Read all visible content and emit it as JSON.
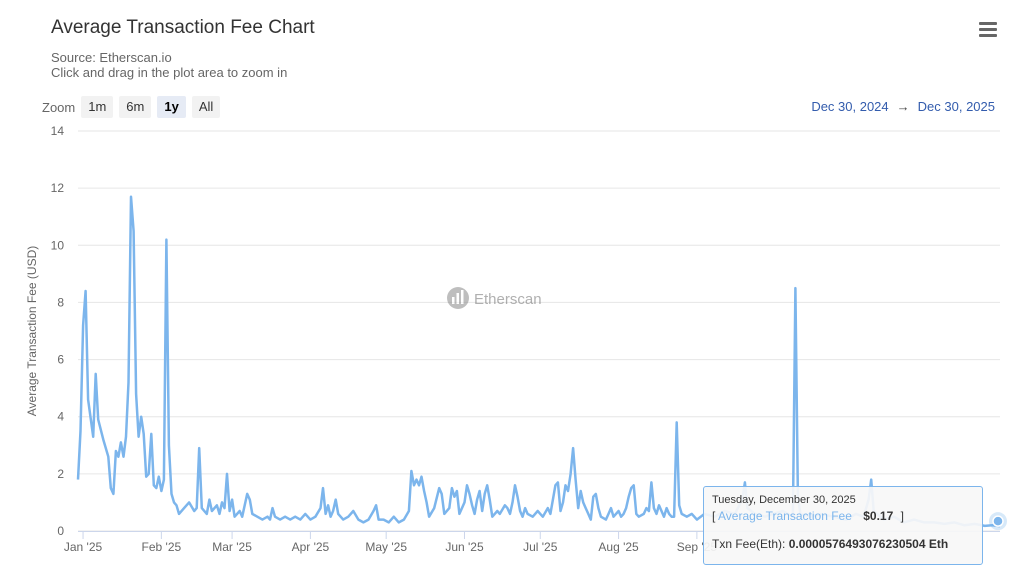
{
  "header": {
    "title": "Average Transaction Fee Chart",
    "source": "Source: Etherscan.io",
    "hint": "Click and drag in the plot area to zoom in"
  },
  "zoom": {
    "label": "Zoom",
    "buttons": [
      "1m",
      "6m",
      "1y",
      "All"
    ],
    "active": "1y"
  },
  "range": {
    "from": "Dec 30, 2024",
    "arrow": "→",
    "to": "Dec 30, 2025"
  },
  "watermark": "Etherscan",
  "menu_icon": "hamburger-menu-icon",
  "colors": {
    "series": "#7cb5ec",
    "grid": "#e6e6e6",
    "axis_text": "#666666"
  },
  "tooltip": {
    "date": "Tuesday, December 30, 2025",
    "bracket_open": "[",
    "series_name": "Average Transaction Fee",
    "value": "$0.17",
    "bracket_close": "]",
    "eth_label": "Txn Fee(Eth):",
    "eth_value": "0.0000576493076230504 Eth"
  },
  "chart_data": {
    "type": "line",
    "title": "Average Transaction Fee Chart",
    "subtitle": "Source: Etherscan.io",
    "ylabel": "Average Transaction Fee (USD)",
    "xlabel": "",
    "ylim": [
      0,
      14
    ],
    "yticks": [
      0,
      2,
      4,
      6,
      8,
      10,
      12,
      14
    ],
    "xlim": [
      "2024-12-30",
      "2025-12-30"
    ],
    "xticks": [
      {
        "date": "2025-01-01",
        "label": "Jan '25"
      },
      {
        "date": "2025-02-01",
        "label": "Feb '25"
      },
      {
        "date": "2025-03-01",
        "label": "Mar '25"
      },
      {
        "date": "2025-04-01",
        "label": "Apr '25"
      },
      {
        "date": "2025-05-01",
        "label": "May '25"
      },
      {
        "date": "2025-06-01",
        "label": "Jun '25"
      },
      {
        "date": "2025-07-01",
        "label": "Jul '25"
      },
      {
        "date": "2025-08-01",
        "label": "Aug '25"
      },
      {
        "date": "2025-09-01",
        "label": "Sep '25"
      }
    ],
    "grid": true,
    "series": [
      {
        "name": "Average Transaction Fee",
        "color": "#7cb5ec",
        "points": [
          [
            "2024-12-30",
            1.8
          ],
          [
            "2024-12-31",
            3.5
          ],
          [
            "2025-01-01",
            7.2
          ],
          [
            "2025-01-02",
            8.4
          ],
          [
            "2025-01-03",
            4.6
          ],
          [
            "2025-01-05",
            3.3
          ],
          [
            "2025-01-06",
            5.5
          ],
          [
            "2025-01-07",
            3.9
          ],
          [
            "2025-01-09",
            3.2
          ],
          [
            "2025-01-11",
            2.6
          ],
          [
            "2025-01-12",
            1.5
          ],
          [
            "2025-01-13",
            1.3
          ],
          [
            "2025-01-14",
            2.8
          ],
          [
            "2025-01-15",
            2.6
          ],
          [
            "2025-01-16",
            3.1
          ],
          [
            "2025-01-17",
            2.6
          ],
          [
            "2025-01-18",
            3.3
          ],
          [
            "2025-01-19",
            5.2
          ],
          [
            "2025-01-20",
            11.7
          ],
          [
            "2025-01-21",
            10.5
          ],
          [
            "2025-01-22",
            4.8
          ],
          [
            "2025-01-23",
            3.3
          ],
          [
            "2025-01-24",
            4.0
          ],
          [
            "2025-01-25",
            3.4
          ],
          [
            "2025-01-26",
            1.9
          ],
          [
            "2025-01-27",
            2.0
          ],
          [
            "2025-01-28",
            3.4
          ],
          [
            "2025-01-29",
            1.6
          ],
          [
            "2025-01-30",
            1.5
          ],
          [
            "2025-01-31",
            1.9
          ],
          [
            "2025-02-01",
            1.4
          ],
          [
            "2025-02-02",
            1.8
          ],
          [
            "2025-02-03",
            10.2
          ],
          [
            "2025-02-04",
            3.0
          ],
          [
            "2025-02-05",
            1.3
          ],
          [
            "2025-02-06",
            1.0
          ],
          [
            "2025-02-07",
            0.9
          ],
          [
            "2025-02-08",
            0.6
          ],
          [
            "2025-02-10",
            0.8
          ],
          [
            "2025-02-12",
            1.0
          ],
          [
            "2025-02-14",
            0.7
          ],
          [
            "2025-02-15",
            0.8
          ],
          [
            "2025-02-16",
            2.9
          ],
          [
            "2025-02-17",
            0.8
          ],
          [
            "2025-02-19",
            0.6
          ],
          [
            "2025-02-20",
            1.1
          ],
          [
            "2025-02-21",
            0.7
          ],
          [
            "2025-02-23",
            0.9
          ],
          [
            "2025-02-24",
            0.6
          ],
          [
            "2025-02-25",
            1.0
          ],
          [
            "2025-02-26",
            0.8
          ],
          [
            "2025-02-27",
            2.0
          ],
          [
            "2025-02-28",
            0.7
          ],
          [
            "2025-03-01",
            1.1
          ],
          [
            "2025-03-02",
            0.5
          ],
          [
            "2025-03-04",
            0.7
          ],
          [
            "2025-03-05",
            0.5
          ],
          [
            "2025-03-07",
            1.3
          ],
          [
            "2025-03-08",
            1.1
          ],
          [
            "2025-03-09",
            0.6
          ],
          [
            "2025-03-11",
            0.5
          ],
          [
            "2025-03-13",
            0.4
          ],
          [
            "2025-03-15",
            0.5
          ],
          [
            "2025-03-16",
            0.4
          ],
          [
            "2025-03-17",
            0.8
          ],
          [
            "2025-03-18",
            0.5
          ],
          [
            "2025-03-20",
            0.4
          ],
          [
            "2025-03-22",
            0.5
          ],
          [
            "2025-03-24",
            0.4
          ],
          [
            "2025-03-26",
            0.5
          ],
          [
            "2025-03-28",
            0.4
          ],
          [
            "2025-03-30",
            0.6
          ],
          [
            "2025-04-01",
            0.4
          ],
          [
            "2025-04-03",
            0.5
          ],
          [
            "2025-04-05",
            0.8
          ],
          [
            "2025-04-06",
            1.5
          ],
          [
            "2025-04-07",
            0.6
          ],
          [
            "2025-04-08",
            0.9
          ],
          [
            "2025-04-09",
            0.5
          ],
          [
            "2025-04-10",
            0.7
          ],
          [
            "2025-04-11",
            1.1
          ],
          [
            "2025-04-12",
            0.6
          ],
          [
            "2025-04-14",
            0.4
          ],
          [
            "2025-04-16",
            0.5
          ],
          [
            "2025-04-18",
            0.7
          ],
          [
            "2025-04-20",
            0.4
          ],
          [
            "2025-04-22",
            0.3
          ],
          [
            "2025-04-24",
            0.4
          ],
          [
            "2025-04-26",
            0.7
          ],
          [
            "2025-04-27",
            0.9
          ],
          [
            "2025-04-28",
            0.4
          ],
          [
            "2025-04-30",
            0.4
          ],
          [
            "2025-05-02",
            0.3
          ],
          [
            "2025-05-04",
            0.5
          ],
          [
            "2025-05-06",
            0.3
          ],
          [
            "2025-05-08",
            0.4
          ],
          [
            "2025-05-10",
            0.7
          ],
          [
            "2025-05-11",
            2.1
          ],
          [
            "2025-05-12",
            1.6
          ],
          [
            "2025-05-13",
            1.8
          ],
          [
            "2025-05-14",
            1.6
          ],
          [
            "2025-05-15",
            1.9
          ],
          [
            "2025-05-16",
            1.4
          ],
          [
            "2025-05-17",
            1.0
          ],
          [
            "2025-05-18",
            0.5
          ],
          [
            "2025-05-20",
            0.8
          ],
          [
            "2025-05-22",
            1.5
          ],
          [
            "2025-05-23",
            1.3
          ],
          [
            "2025-05-24",
            0.6
          ],
          [
            "2025-05-26",
            0.8
          ],
          [
            "2025-05-27",
            1.5
          ],
          [
            "2025-05-28",
            1.2
          ],
          [
            "2025-05-29",
            1.4
          ],
          [
            "2025-05-30",
            0.6
          ],
          [
            "2025-06-01",
            1.0
          ],
          [
            "2025-06-02",
            1.6
          ],
          [
            "2025-06-03",
            1.3
          ],
          [
            "2025-06-04",
            0.9
          ],
          [
            "2025-06-05",
            0.6
          ],
          [
            "2025-06-06",
            1.1
          ],
          [
            "2025-06-07",
            1.4
          ],
          [
            "2025-06-08",
            0.7
          ],
          [
            "2025-06-09",
            1.3
          ],
          [
            "2025-06-10",
            1.6
          ],
          [
            "2025-06-11",
            1.1
          ],
          [
            "2025-06-12",
            0.5
          ],
          [
            "2025-06-14",
            0.7
          ],
          [
            "2025-06-15",
            0.6
          ],
          [
            "2025-06-17",
            0.9
          ],
          [
            "2025-06-18",
            0.8
          ],
          [
            "2025-06-19",
            0.6
          ],
          [
            "2025-06-20",
            1.0
          ],
          [
            "2025-06-21",
            1.6
          ],
          [
            "2025-06-22",
            1.2
          ],
          [
            "2025-06-23",
            0.7
          ],
          [
            "2025-06-24",
            0.5
          ],
          [
            "2025-06-25",
            0.8
          ],
          [
            "2025-06-26",
            0.6
          ],
          [
            "2025-06-28",
            0.5
          ],
          [
            "2025-06-30",
            0.7
          ],
          [
            "2025-07-01",
            0.6
          ],
          [
            "2025-07-02",
            0.5
          ],
          [
            "2025-07-04",
            0.8
          ],
          [
            "2025-07-05",
            0.6
          ],
          [
            "2025-07-06",
            1.1
          ],
          [
            "2025-07-07",
            1.6
          ],
          [
            "2025-07-08",
            1.7
          ],
          [
            "2025-07-09",
            0.7
          ],
          [
            "2025-07-10",
            1.0
          ],
          [
            "2025-07-11",
            1.6
          ],
          [
            "2025-07-12",
            1.4
          ],
          [
            "2025-07-13",
            2.0
          ],
          [
            "2025-07-14",
            2.9
          ],
          [
            "2025-07-15",
            1.8
          ],
          [
            "2025-07-16",
            0.8
          ],
          [
            "2025-07-17",
            1.4
          ],
          [
            "2025-07-18",
            1.0
          ],
          [
            "2025-07-19",
            0.8
          ],
          [
            "2025-07-20",
            0.6
          ],
          [
            "2025-07-21",
            0.4
          ],
          [
            "2025-07-22",
            1.2
          ],
          [
            "2025-07-23",
            1.3
          ],
          [
            "2025-07-24",
            0.8
          ],
          [
            "2025-07-25",
            0.5
          ],
          [
            "2025-07-27",
            0.4
          ],
          [
            "2025-07-28",
            0.6
          ],
          [
            "2025-07-29",
            0.8
          ],
          [
            "2025-07-30",
            0.5
          ],
          [
            "2025-08-01",
            0.7
          ],
          [
            "2025-08-02",
            0.5
          ],
          [
            "2025-08-03",
            0.6
          ],
          [
            "2025-08-04",
            0.8
          ],
          [
            "2025-08-05",
            1.2
          ],
          [
            "2025-08-06",
            1.5
          ],
          [
            "2025-08-07",
            1.6
          ],
          [
            "2025-08-08",
            0.6
          ],
          [
            "2025-08-09",
            0.5
          ],
          [
            "2025-08-11",
            0.6
          ],
          [
            "2025-08-12",
            0.8
          ],
          [
            "2025-08-13",
            0.7
          ],
          [
            "2025-08-14",
            1.7
          ],
          [
            "2025-08-15",
            0.8
          ],
          [
            "2025-08-16",
            0.6
          ],
          [
            "2025-08-17",
            0.9
          ],
          [
            "2025-08-18",
            0.7
          ],
          [
            "2025-08-19",
            0.5
          ],
          [
            "2025-08-20",
            0.8
          ],
          [
            "2025-08-21",
            0.6
          ],
          [
            "2025-08-22",
            0.5
          ],
          [
            "2025-08-23",
            0.5
          ],
          [
            "2025-08-24",
            3.8
          ],
          [
            "2025-08-25",
            0.9
          ],
          [
            "2025-08-26",
            0.6
          ],
          [
            "2025-08-28",
            0.5
          ],
          [
            "2025-08-30",
            0.6
          ],
          [
            "2025-09-01",
            0.4
          ],
          [
            "2025-09-04",
            0.6
          ],
          [
            "2025-09-08",
            0.5
          ],
          [
            "2025-09-12",
            0.7
          ],
          [
            "2025-09-16",
            0.6
          ],
          [
            "2025-09-19",
            1.1
          ],
          [
            "2025-09-20",
            1.7
          ],
          [
            "2025-09-21",
            0.8
          ],
          [
            "2025-09-24",
            0.6
          ],
          [
            "2025-09-28",
            0.5
          ],
          [
            "2025-10-01",
            0.6
          ],
          [
            "2025-10-05",
            0.7
          ],
          [
            "2025-10-09",
            0.5
          ],
          [
            "2025-10-10",
            8.5
          ],
          [
            "2025-10-11",
            1.2
          ],
          [
            "2025-10-12",
            0.6
          ],
          [
            "2025-10-16",
            0.5
          ],
          [
            "2025-10-20",
            0.6
          ],
          [
            "2025-10-25",
            0.5
          ],
          [
            "2025-10-30",
            0.4
          ],
          [
            "2025-11-03",
            0.6
          ],
          [
            "2025-11-06",
            0.5
          ],
          [
            "2025-11-08",
            1.1
          ],
          [
            "2025-11-09",
            1.8
          ],
          [
            "2025-11-10",
            0.7
          ],
          [
            "2025-11-14",
            0.4
          ],
          [
            "2025-11-18",
            0.5
          ],
          [
            "2025-11-22",
            0.3
          ],
          [
            "2025-11-26",
            0.4
          ],
          [
            "2025-11-30",
            0.3
          ],
          [
            "2025-12-04",
            0.3
          ],
          [
            "2025-12-08",
            0.25
          ],
          [
            "2025-12-12",
            0.3
          ],
          [
            "2025-12-16",
            0.2
          ],
          [
            "2025-12-20",
            0.25
          ],
          [
            "2025-12-24",
            0.18
          ],
          [
            "2025-12-27",
            0.2
          ],
          [
            "2025-12-30",
            0.17
          ]
        ]
      }
    ],
    "highlight": {
      "date": "2025-12-30",
      "value": 0.17
    }
  }
}
